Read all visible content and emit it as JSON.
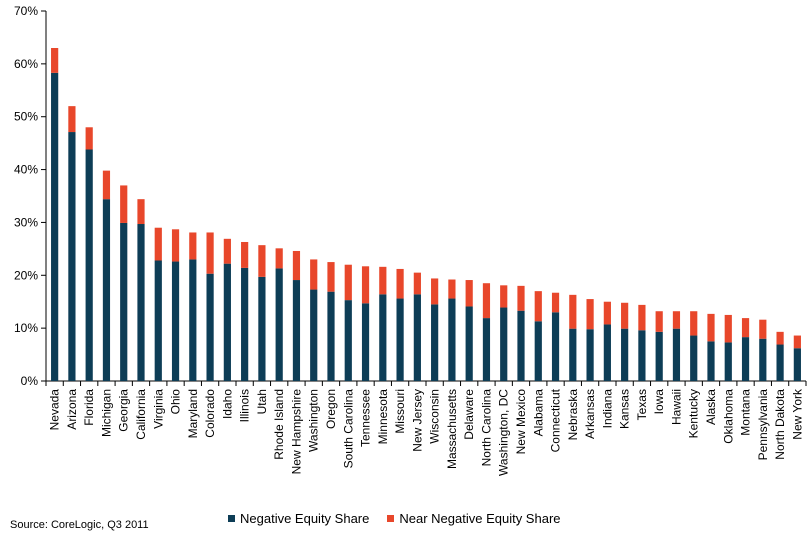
{
  "chart_data": {
    "type": "bar",
    "stacked": true,
    "categories": [
      "Nevada",
      "Arizona",
      "Florida",
      "Michigan",
      "Georgia",
      "California",
      "Virginia",
      "Ohio",
      "Maryland",
      "Colorado",
      "Idaho",
      "Illinois",
      "Utah",
      "Rhode Island",
      "New Hampshire",
      "Washington",
      "Oregon",
      "South Carolina",
      "Tennessee",
      "Minnesota",
      "Missouri",
      "New Jersey",
      "Wisconsin",
      "Massachusetts",
      "Delaware",
      "North Carolina",
      "Washington, DC",
      "New Mexico",
      "Alabama",
      "Connecticut",
      "Nebraska",
      "Arkansas",
      "Indiana",
      "Kansas",
      "Texas",
      "Iowa",
      "Hawaii",
      "Kentucky",
      "Alaska",
      "Oklahoma",
      "Montana",
      "Pennsylvania",
      "North Dakota",
      "New York"
    ],
    "series": [
      {
        "name": "Negative Equity Share",
        "color": "#0d3d56",
        "values": [
          58.3,
          47.1,
          43.8,
          34.4,
          29.9,
          29.7,
          22.8,
          22.6,
          23.0,
          20.3,
          22.2,
          21.4,
          19.7,
          21.3,
          19.1,
          17.3,
          16.9,
          15.3,
          14.7,
          16.4,
          15.6,
          16.4,
          14.5,
          15.6,
          14.1,
          11.9,
          13.9,
          13.3,
          11.3,
          13.0,
          9.9,
          9.8,
          10.7,
          9.9,
          9.6,
          9.3,
          9.9,
          8.6,
          7.5,
          7.3,
          8.3,
          8.0,
          6.9,
          6.2
        ]
      },
      {
        "name": "Near Negative Equity Share",
        "color": "#e8472b",
        "values": [
          4.7,
          4.9,
          4.2,
          5.4,
          7.1,
          4.7,
          6.2,
          6.1,
          5.1,
          7.8,
          4.7,
          4.9,
          6.0,
          3.8,
          5.5,
          5.7,
          5.6,
          6.7,
          7.0,
          5.2,
          5.6,
          4.1,
          4.9,
          3.6,
          5.0,
          6.6,
          4.2,
          4.7,
          5.7,
          3.7,
          6.4,
          5.7,
          4.3,
          4.9,
          4.8,
          3.9,
          3.3,
          4.6,
          5.2,
          5.2,
          3.6,
          3.6,
          2.4,
          2.4
        ]
      }
    ],
    "ylim": [
      0,
      70
    ],
    "yticks": [
      "0%",
      "10%",
      "20%",
      "30%",
      "40%",
      "50%",
      "60%",
      "70%"
    ],
    "legend_position": "bottom",
    "grid": false
  },
  "source": "Source: CoreLogic, Q3 2011"
}
